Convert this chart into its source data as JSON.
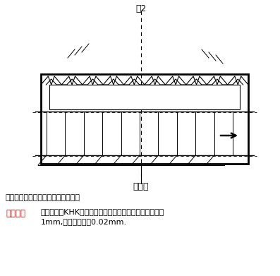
{
  "title": "图2",
  "label_jizun": "基准齿",
  "text_arrow": "按箭头方向移动蜗杆齿隙逐渐变小。",
  "note_label": "【附注】",
  "note_text1": "所有模数的KHK双导程蜗杆被设计为蜗杆在轴方向每移动",
  "note_text2": "1mm,齿隙变化量为0.02mm.",
  "bg_color": "#ffffff",
  "line_color": "#000000",
  "note_color": "#cc0000",
  "fig_width": 3.97,
  "fig_height": 3.91
}
